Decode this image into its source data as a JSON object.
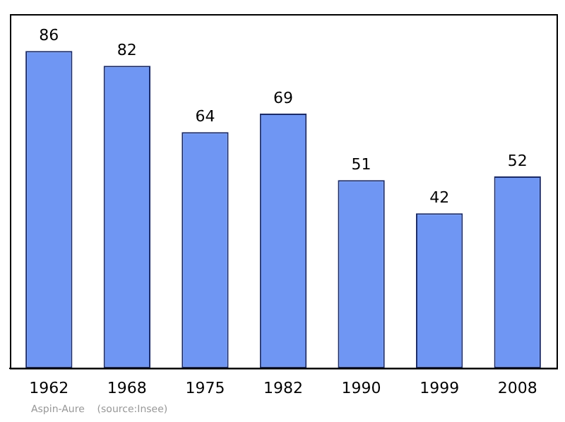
{
  "chart_data": {
    "type": "bar",
    "categories": [
      "1962",
      "1968",
      "1975",
      "1982",
      "1990",
      "1999",
      "2008"
    ],
    "values": [
      86,
      82,
      64,
      69,
      51,
      42,
      52
    ],
    "color": "#6f96f3",
    "ylim": [
      0,
      96
    ],
    "data_labels": true,
    "tick_labels": "x",
    "grid": false,
    "legend": false,
    "annotations": [
      "Aspin-Aure    (source:Insee)"
    ]
  }
}
